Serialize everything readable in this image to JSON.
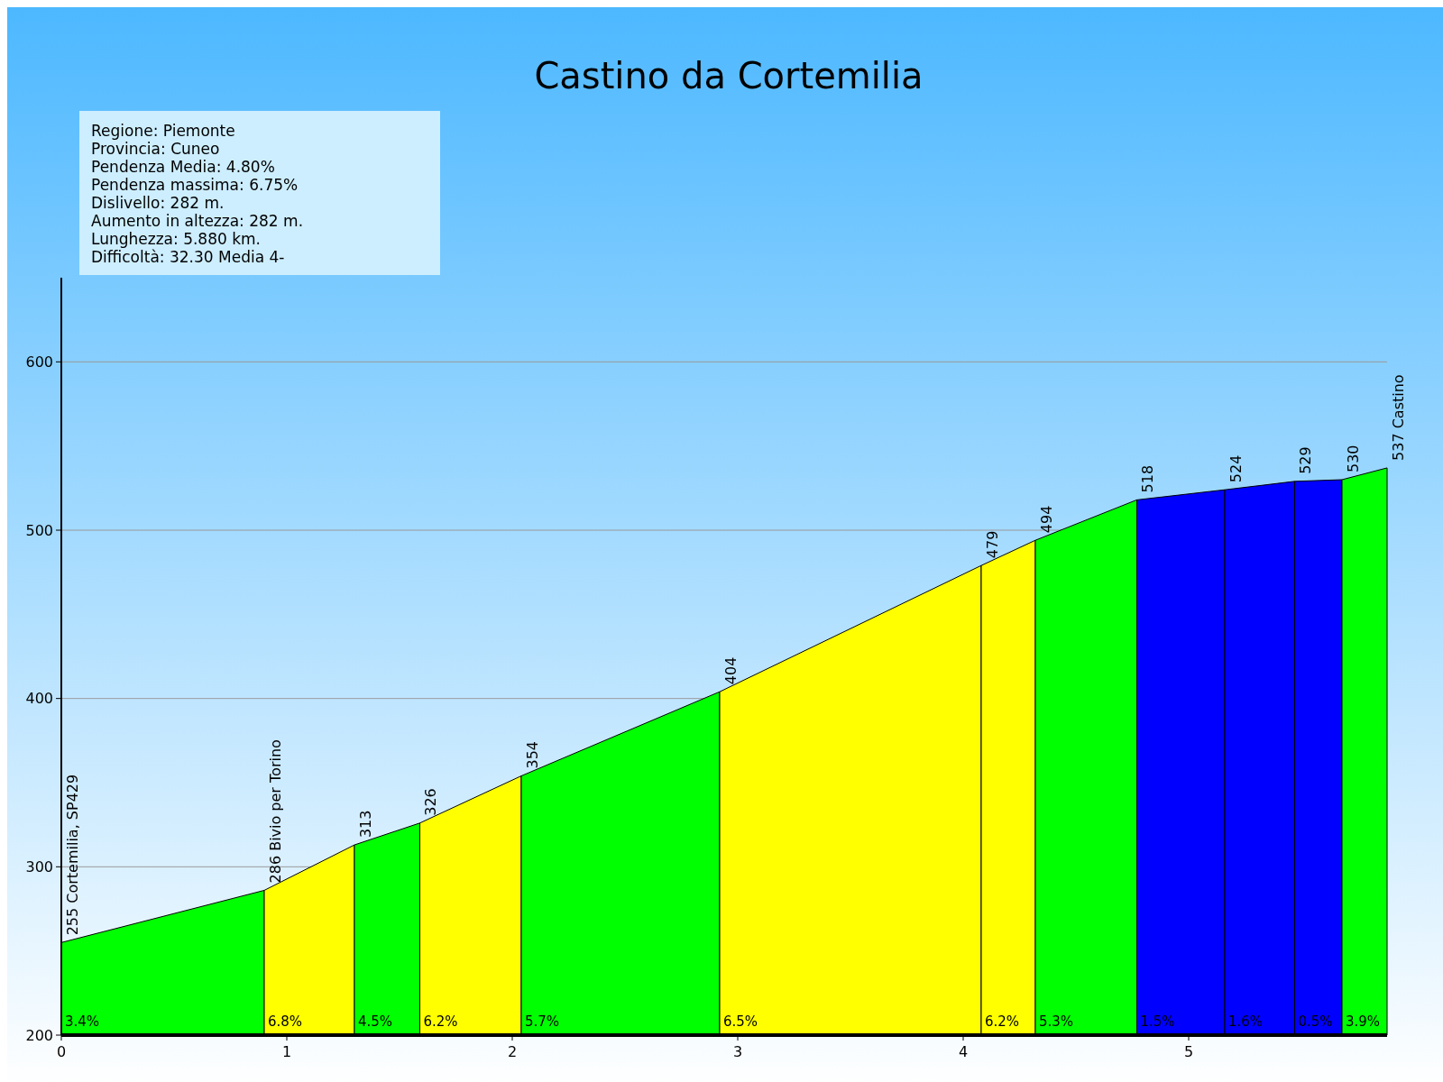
{
  "chart_data": {
    "type": "area",
    "title": "Castino da Cortemilia",
    "xlim": [
      0,
      5.88
    ],
    "xticks": [
      0,
      1,
      2,
      3,
      4,
      5
    ],
    "ylim": [
      200,
      650
    ],
    "yticks": [
      200,
      300,
      400,
      500,
      600
    ],
    "grid": "y",
    "series": [
      {
        "color": "#00ff00",
        "x": [
          0,
          0.9
        ],
        "values": [
          255,
          286
        ]
      },
      {
        "color": "#ffff00",
        "x": [
          0.9,
          1.3
        ],
        "values": [
          286,
          313
        ]
      },
      {
        "color": "#00ff00",
        "x": [
          1.3,
          1.59
        ],
        "values": [
          313,
          326
        ]
      },
      {
        "color": "#ffff00",
        "x": [
          1.59,
          2.04
        ],
        "values": [
          326,
          354
        ]
      },
      {
        "color": "#00ff00",
        "x": [
          2.04,
          2.92
        ],
        "values": [
          354,
          404
        ]
      },
      {
        "color": "#ffff00",
        "x": [
          2.92,
          4.08
        ],
        "values": [
          404,
          479
        ]
      },
      {
        "color": "#ffff00",
        "x": [
          4.08,
          4.32
        ],
        "values": [
          479,
          494
        ]
      },
      {
        "color": "#00ff00",
        "x": [
          4.32,
          4.77
        ],
        "values": [
          494,
          518
        ]
      },
      {
        "color": "#0000ff",
        "x": [
          4.77,
          5.16
        ],
        "values": [
          518,
          524
        ]
      },
      {
        "color": "#0000ff",
        "x": [
          5.16,
          5.47
        ],
        "values": [
          524,
          529
        ]
      },
      {
        "color": "#0000ff",
        "x": [
          5.47,
          5.68
        ],
        "values": [
          529,
          530
        ]
      },
      {
        "color": "#00ff00",
        "x": [
          5.68,
          5.88
        ],
        "values": [
          530,
          537
        ]
      }
    ],
    "annotations": [
      "Regione: Piemonte",
      "Provincia: Cuneo",
      "Pendenza Media: 4.80%",
      "Pendenza massima: 6.75%",
      "Dislivello:  282 m.",
      "Aumento in altezza:  282 m.",
      "Lunghezza:  5.880 km.",
      "Difficoltà: 32.30 Media 4-",
      {
        "text": "255 Cortemilia, SP429",
        "x": 0,
        "y": 255
      },
      {
        "text": "286 Bivio per Torino",
        "x": 0.9,
        "y": 286
      },
      {
        "text": "313",
        "x": 1.3,
        "y": 313
      },
      {
        "text": "326",
        "x": 1.59,
        "y": 326
      },
      {
        "text": "354",
        "x": 2.04,
        "y": 354
      },
      {
        "text": "404",
        "x": 2.92,
        "y": 404
      },
      {
        "text": "479",
        "x": 4.08,
        "y": 479
      },
      {
        "text": "494",
        "x": 4.32,
        "y": 494
      },
      {
        "text": "518",
        "x": 4.77,
        "y": 518
      },
      {
        "text": "524",
        "x": 5.16,
        "y": 524
      },
      {
        "text": "529",
        "x": 5.47,
        "y": 529
      },
      {
        "text": "530",
        "x": 5.68,
        "y": 530
      },
      {
        "text": "537 Castino",
        "x": 5.88,
        "y": 537
      },
      {
        "text": "3.4%",
        "x": 0
      },
      {
        "text": "6.8%",
        "x": 0.9
      },
      {
        "text": "4.5%",
        "x": 1.3
      },
      {
        "text": "6.2%",
        "x": 1.59
      },
      {
        "text": "5.7%",
        "x": 2.04
      },
      {
        "text": "6.5%",
        "x": 2.92
      },
      {
        "text": "6.2%",
        "x": 4.08
      },
      {
        "text": "5.3%",
        "x": 4.32
      },
      {
        "text": "1.5%",
        "x": 4.77
      },
      {
        "text": "1.6%",
        "x": 5.16
      },
      {
        "text": "0.5%",
        "x": 5.47
      },
      {
        "text": "3.9%",
        "x": 5.68
      }
    ]
  }
}
